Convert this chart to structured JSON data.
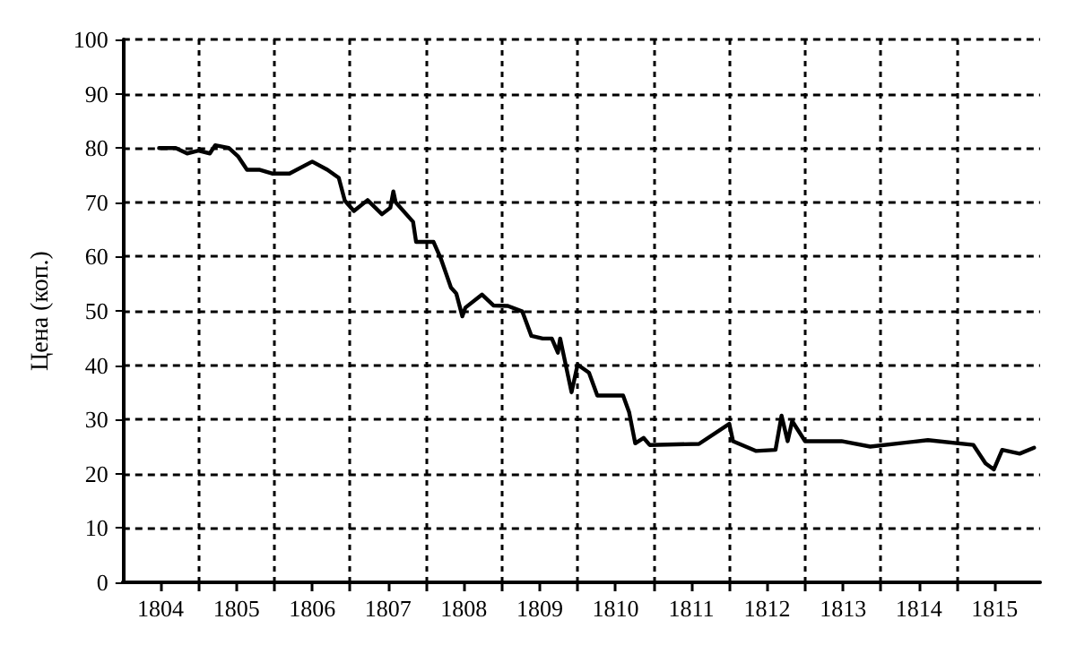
{
  "chart_data": {
    "type": "line",
    "ylabel": "Цена (коп.)",
    "x": [
      1803.98,
      1804.2,
      1804.35,
      1804.5,
      1804.65,
      1804.72,
      1804.9,
      1805.02,
      1805.14,
      1805.3,
      1805.47,
      1805.7,
      1806.0,
      1806.2,
      1806.35,
      1806.43,
      1806.55,
      1806.73,
      1806.92,
      1807.03,
      1807.07,
      1807.1,
      1807.33,
      1807.37,
      1807.6,
      1807.7,
      1807.83,
      1807.9,
      1807.98,
      1808.02,
      1808.24,
      1808.39,
      1808.58,
      1808.77,
      1808.89,
      1809.04,
      1809.16,
      1809.24,
      1809.27,
      1809.42,
      1809.5,
      1809.65,
      1809.76,
      1810.1,
      1810.18,
      1810.26,
      1810.37,
      1810.45,
      1811.1,
      1811.5,
      1811.55,
      1811.85,
      1812.11,
      1812.19,
      1812.27,
      1812.33,
      1812.5,
      1812.98,
      1813.36,
      1814.12,
      1814.72,
      1814.88,
      1814.99,
      1815.1,
      1815.33,
      1815.52
    ],
    "series": [
      {
        "color": "#000000",
        "values": [
          80,
          80,
          79,
          79.5,
          79,
          80.5,
          80,
          78.5,
          76,
          76,
          75.3,
          75.3,
          77.5,
          76,
          74.5,
          70.3,
          68.4,
          70.4,
          67.8,
          69,
          72,
          70,
          66.4,
          62.7,
          62.7,
          59.5,
          54.3,
          53.2,
          49,
          50.6,
          53,
          51,
          50.9,
          49.9,
          45.4,
          44.9,
          44.9,
          42.3,
          44.9,
          35,
          40.1,
          38.6,
          34.4,
          34.4,
          31.3,
          25.6,
          26.6,
          25.3,
          25.5,
          29.2,
          26,
          24.2,
          24.4,
          30.7,
          26,
          29.7,
          26,
          26,
          25,
          26.2,
          25.3,
          21.9,
          20.8,
          24.4,
          23.7,
          24.8
        ]
      }
    ],
    "xlim": [
      1803.5,
      1815.6
    ],
    "xticks": [
      1804,
      {
        "value": 1804.5,
        "label": null
      },
      1805,
      {
        "value": 1805.5,
        "label": null
      },
      1806,
      {
        "value": 1806.5,
        "label": null
      },
      1807,
      {
        "value": 1807.5,
        "label": null
      },
      1808,
      {
        "value": 1808.5,
        "label": null
      },
      1809,
      {
        "value": 1809.5,
        "label": null
      },
      1810,
      {
        "value": 1810.5,
        "label": null
      },
      1811,
      {
        "value": 1811.5,
        "label": null
      },
      1812,
      {
        "value": 1812.5,
        "label": null
      },
      1813,
      {
        "value": 1813.5,
        "label": null
      },
      1814,
      {
        "value": 1814.5,
        "label": null
      },
      1815
    ],
    "ylim": [
      0,
      100
    ],
    "yticks": [
      0,
      10,
      20,
      30,
      40,
      50,
      60,
      70,
      80,
      90,
      100
    ],
    "grid": true,
    "marker": "none",
    "line_style": "solid"
  }
}
